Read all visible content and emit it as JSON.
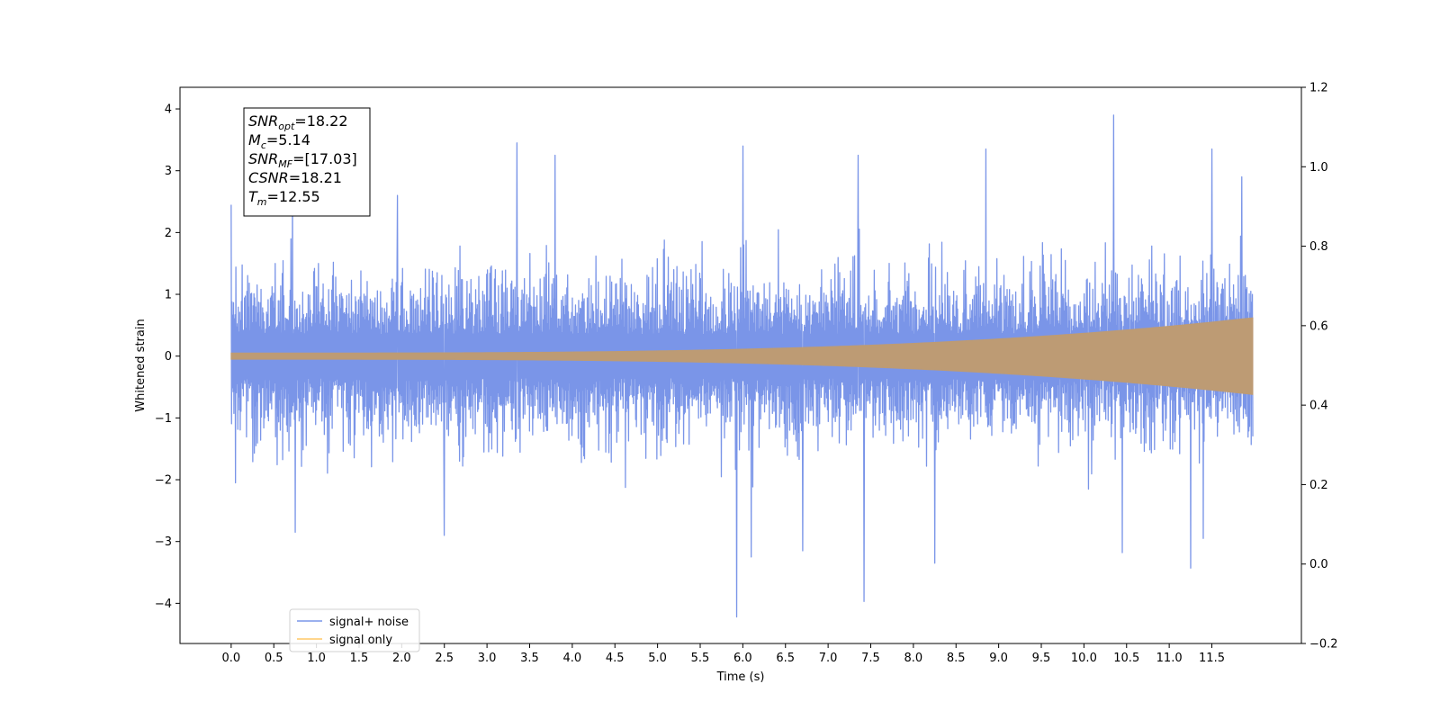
{
  "chart_data": {
    "type": "line",
    "xlabel": "Time (s)",
    "ylabel": "Whitened strain",
    "xlim": [
      -0.6,
      12.55
    ],
    "ylim": [
      -4.65,
      4.35
    ],
    "y2lim": [
      -0.2,
      1.2
    ],
    "x_ticks": [
      0.0,
      0.5,
      1.0,
      1.5,
      2.0,
      2.5,
      3.0,
      3.5,
      4.0,
      4.5,
      5.0,
      5.5,
      6.0,
      6.5,
      7.0,
      7.5,
      8.0,
      8.5,
      9.0,
      9.5,
      10.0,
      10.5,
      11.0,
      11.5
    ],
    "x_tick_labels": [
      "0.0",
      "0.5",
      "1.0",
      "1.5",
      "2.0",
      "2.5",
      "3.0",
      "3.5",
      "4.0",
      "4.5",
      "5.0",
      "5.5",
      "6.0",
      "6.5",
      "7.0",
      "7.5",
      "8.0",
      "8.5",
      "9.0",
      "9.5",
      "10.0",
      "10.5",
      "11.0",
      "11.5"
    ],
    "y_ticks": [
      -4,
      -3,
      -2,
      -1,
      0,
      1,
      2,
      3,
      4
    ],
    "y_tick_labels": [
      "−4",
      "−3",
      "−2",
      "−1",
      "0",
      "1",
      "2",
      "3",
      "4"
    ],
    "y2_ticks": [
      -0.2,
      0.0,
      0.2,
      0.4,
      0.6,
      0.8,
      1.0,
      1.2
    ],
    "y2_tick_labels": [
      "−0.2",
      "0.0",
      "0.2",
      "0.4",
      "0.6",
      "0.8",
      "1.0",
      "1.2"
    ],
    "grid": false,
    "legend_position": "bottom-left",
    "series": [
      {
        "name": "signal+ noise",
        "color": "#7a95e8",
        "t_range": [
          0.0,
          11.98
        ],
        "typical_envelope": [
          -1.6,
          1.6
        ],
        "peaks": [
          {
            "t": 0.0,
            "y": 2.45
          },
          {
            "t": 0.72,
            "y": 2.8
          },
          {
            "t": 1.95,
            "y": 2.6
          },
          {
            "t": 3.35,
            "y": 3.45
          },
          {
            "t": 3.8,
            "y": 3.25
          },
          {
            "t": 6.0,
            "y": 3.4
          },
          {
            "t": 7.35,
            "y": 3.25
          },
          {
            "t": 8.85,
            "y": 3.35
          },
          {
            "t": 10.35,
            "y": 3.9
          },
          {
            "t": 11.5,
            "y": 3.35
          },
          {
            "t": 11.85,
            "y": 2.9
          }
        ],
        "troughs": [
          {
            "t": 0.05,
            "y": -2.05
          },
          {
            "t": 0.75,
            "y": -2.85
          },
          {
            "t": 2.5,
            "y": -2.9
          },
          {
            "t": 5.93,
            "y": -4.22
          },
          {
            "t": 6.1,
            "y": -3.25
          },
          {
            "t": 6.7,
            "y": -3.15
          },
          {
            "t": 7.42,
            "y": -3.97
          },
          {
            "t": 8.25,
            "y": -3.35
          },
          {
            "t": 10.45,
            "y": -3.18
          },
          {
            "t": 11.25,
            "y": -3.43
          },
          {
            "t": 11.4,
            "y": -2.95
          }
        ]
      },
      {
        "name": "signal only",
        "color": "#ffc966",
        "overlap_color": "#bd9b74",
        "t_range": [
          0.0,
          11.98
        ],
        "amplitude_start": 0.05,
        "amplitude_end": 0.62
      }
    ],
    "annotation": [
      {
        "var": "SNR",
        "sub": "opt",
        "value": "=18.22"
      },
      {
        "var": "M",
        "sub": "c",
        "value": "=5.14"
      },
      {
        "var": "SNR",
        "sub": "MF",
        "value": "=[17.03]"
      },
      {
        "var": "CSNR",
        "sub": "",
        "value": "=18.21"
      },
      {
        "var": "T",
        "sub": "m",
        "value": "=12.55"
      }
    ]
  }
}
